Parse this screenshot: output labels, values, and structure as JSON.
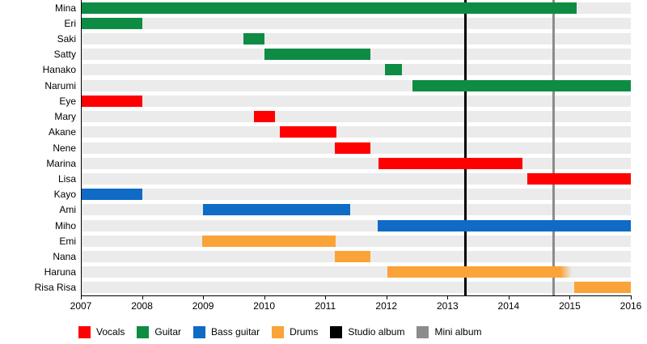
{
  "page": {
    "background": "#ffffff"
  },
  "chart_data": {
    "type": "gantt",
    "title": "",
    "x_axis": {
      "min": 2007,
      "max": 2016,
      "tick_labels": [
        "2007",
        "2008",
        "2009",
        "2010",
        "2011",
        "2012",
        "2013",
        "2014",
        "2015",
        "2016"
      ],
      "grid": false
    },
    "rows": [
      {
        "label": "Mina",
        "role": "Guitar",
        "start": 2007.0,
        "end": 2015.11,
        "fade_end": false
      },
      {
        "label": "Eri",
        "role": "Guitar",
        "start": 2007.0,
        "end": 2008.0,
        "fade_end": false
      },
      {
        "label": "Saki",
        "role": "Guitar",
        "start": 2009.66,
        "end": 2010.01,
        "fade_end": false
      },
      {
        "label": "Satty",
        "role": "Guitar",
        "start": 2010.0,
        "end": 2011.74,
        "fade_end": false
      },
      {
        "label": "Hanako",
        "role": "Guitar",
        "start": 2011.98,
        "end": 2012.26,
        "fade_end": false
      },
      {
        "label": "Narumi",
        "role": "Guitar",
        "start": 2012.42,
        "end": 2016.0,
        "fade_end": false
      },
      {
        "label": "Eye",
        "role": "Vocals",
        "start": 2007.0,
        "end": 2008.0,
        "fade_end": false
      },
      {
        "label": "Mary",
        "role": "Vocals",
        "start": 2009.83,
        "end": 2010.17,
        "fade_end": false
      },
      {
        "label": "Akane",
        "role": "Vocals",
        "start": 2010.25,
        "end": 2011.18,
        "fade_end": false
      },
      {
        "label": "Nene",
        "role": "Vocals",
        "start": 2011.15,
        "end": 2011.74,
        "fade_end": false
      },
      {
        "label": "Marina",
        "role": "Vocals",
        "start": 2011.87,
        "end": 2014.22,
        "fade_end": false
      },
      {
        "label": "Lisa",
        "role": "Vocals",
        "start": 2014.31,
        "end": 2016.0,
        "fade_end": false
      },
      {
        "label": "Kayo",
        "role": "Bass guitar",
        "start": 2007.0,
        "end": 2008.0,
        "fade_end": false
      },
      {
        "label": "Ami",
        "role": "Bass guitar",
        "start": 2009.0,
        "end": 2011.41,
        "fade_end": false
      },
      {
        "label": "Miho",
        "role": "Bass guitar",
        "start": 2011.86,
        "end": 2016.0,
        "fade_end": false
      },
      {
        "label": "Emi",
        "role": "Drums",
        "start": 2008.99,
        "end": 2011.17,
        "fade_end": false
      },
      {
        "label": "Nana",
        "role": "Drums",
        "start": 2011.15,
        "end": 2011.74,
        "fade_end": false
      },
      {
        "label": "Haruna",
        "role": "Drums",
        "start": 2012.02,
        "end": 2015.04,
        "fade_end": true
      },
      {
        "label": "Risa Risa",
        "role": "Drums",
        "start": 2015.07,
        "end": 2016.0,
        "fade_end": false
      }
    ],
    "events": [
      {
        "label": "Studio album",
        "year": 2013.29
      },
      {
        "label": "Mini album",
        "year": 2014.73
      }
    ],
    "role_colors": {
      "Vocals": "#ff0000",
      "Guitar": "#0e8c44",
      "Bass guitar": "#0f6bc5",
      "Drums": "#f9a338"
    },
    "event_colors": {
      "Studio album": "#000000",
      "Mini album": "#8c8c8c"
    },
    "row_background": "#ebebeb",
    "legend_position": "bottom"
  },
  "legend": {
    "items": [
      {
        "label": "Vocals",
        "color": "#ff0000"
      },
      {
        "label": "Guitar",
        "color": "#0e8c44"
      },
      {
        "label": "Bass guitar",
        "color": "#0f6bc5"
      },
      {
        "label": "Drums",
        "color": "#f9a338"
      },
      {
        "label": "Studio album",
        "color": "#000000"
      },
      {
        "label": "Mini album",
        "color": "#8c8c8c"
      }
    ]
  }
}
